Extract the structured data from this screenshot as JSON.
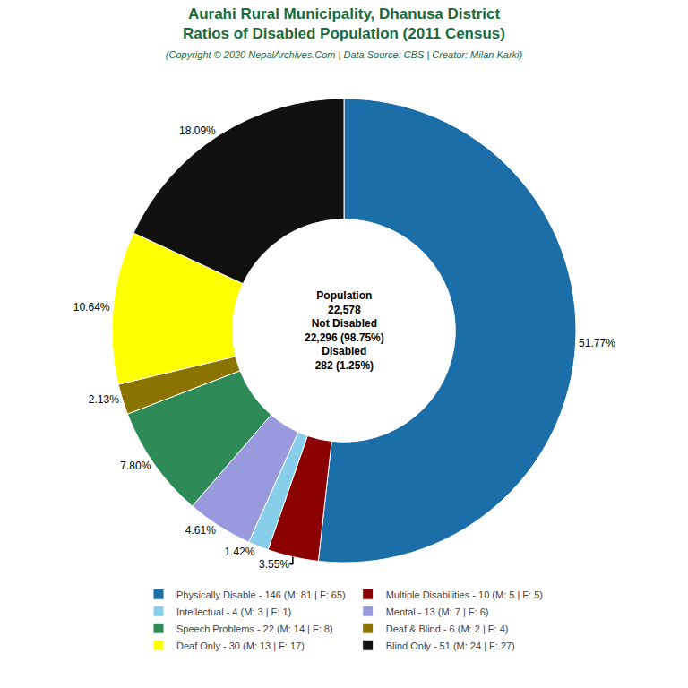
{
  "chart_data": {
    "type": "pie",
    "title": "Aurahi Rural Municipality, Dhanusa District\nRatios of Disabled Population (2011 Census)",
    "subtitle": "(Copyright © 2020 NepalArchives.Com | Data Source: CBS | Creator: Milan Karki)",
    "categories": [
      "Physically Disable - 146 (M: 81 | F: 65)",
      "Multiple Disabilities - 10 (M: 5 | F: 5)",
      "Intellectual - 4 (M: 3 | F: 1)",
      "Mental - 13 (M: 7 | F: 6)",
      "Speech Problems - 22 (M: 14 | F: 8)",
      "Deaf & Blind - 6 (M: 2 | F: 4)",
      "Deaf Only - 30 (M: 13 | F: 17)",
      "Blind Only - 51 (M: 24 | F: 27)"
    ],
    "values": [
      51.77,
      3.55,
      1.42,
      4.61,
      7.8,
      2.13,
      10.64,
      18.09
    ],
    "value_labels": [
      "51.77%",
      "3.55%",
      "1.42%",
      "4.61%",
      "7.80%",
      "2.13%",
      "10.64%",
      "18.09%"
    ],
    "colors": [
      "#1b6ea8",
      "#8b0000",
      "#87ceeb",
      "#9999dd",
      "#2e8b57",
      "#8b7300",
      "#ffff00",
      "#111111"
    ],
    "data_labels": true,
    "legend": "bottom",
    "annotations": [
      "Population",
      "22,578",
      "Not Disabled",
      "22,296 (98.75%)",
      "Disabled",
      "282 (1.25%)"
    ],
    "color": "#1a6b3c"
  }
}
